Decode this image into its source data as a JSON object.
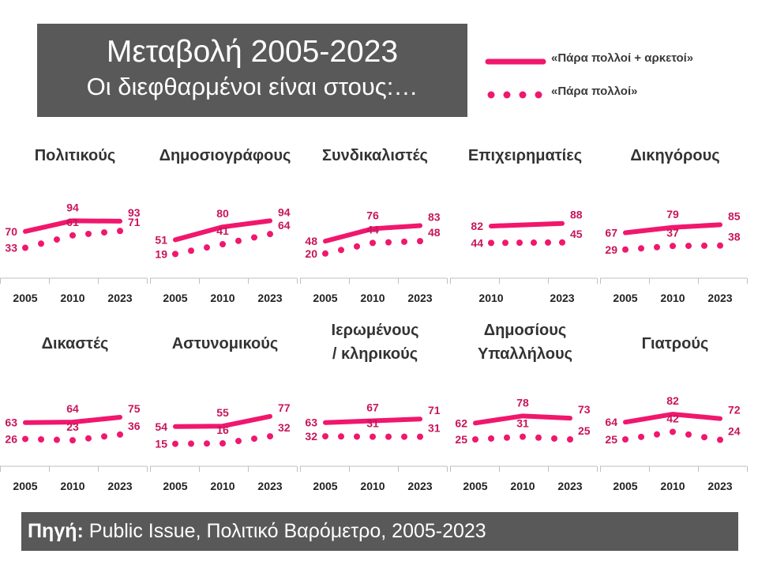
{
  "header": {
    "title_line1": "Μεταβολή 2005-2023",
    "title_line2": "Οι διεφθαρμένοι είναι στους:…"
  },
  "legend": {
    "solid_label": "«Πάρα πολλοί + αρκετοί»",
    "dotted_label": "«Πάρα πολλοί»"
  },
  "source": {
    "label": "Πηγή:",
    "text": " Public Issue, Πολιτικό Βαρόμετρο, 2005-2023"
  },
  "colors": {
    "accent": "#f0176d",
    "label": "#c8155a",
    "box": "#595959"
  },
  "chart_data": [
    {
      "type": "line",
      "title": "Πολιτικούς",
      "categories": [
        "2005",
        "2010",
        "2023"
      ],
      "series": [
        {
          "name": "«Πάρα πολλοί + αρκετοί»",
          "style": "solid",
          "values": [
            70,
            94,
            93
          ]
        },
        {
          "name": "«Πάρα πολλοί»",
          "style": "dotted",
          "values": [
            33,
            61,
            71
          ]
        }
      ]
    },
    {
      "type": "line",
      "title": "Δημοσιογράφους",
      "categories": [
        "2005",
        "2010",
        "2023"
      ],
      "series": [
        {
          "name": "«Πάρα πολλοί + αρκετοί»",
          "style": "solid",
          "values": [
            51,
            80,
            94
          ]
        },
        {
          "name": "«Πάρα πολλοί»",
          "style": "dotted",
          "values": [
            19,
            41,
            64
          ]
        }
      ]
    },
    {
      "type": "line",
      "title": "Συνδικαλιστές",
      "categories": [
        "2005",
        "2010",
        "2023"
      ],
      "series": [
        {
          "name": "«Πάρα πολλοί + αρκετοί»",
          "style": "solid",
          "values": [
            48,
            76,
            83
          ]
        },
        {
          "name": "«Πάρα πολλοί»",
          "style": "dotted",
          "values": [
            20,
            44,
            48
          ]
        }
      ]
    },
    {
      "type": "line",
      "title": "Επιχειρηματίες",
      "categories": [
        "2010",
        "2023"
      ],
      "series": [
        {
          "name": "«Πάρα πολλοί + αρκετοί»",
          "style": "solid",
          "values": [
            82,
            88
          ]
        },
        {
          "name": "«Πάρα πολλοί»",
          "style": "dotted",
          "values": [
            44,
            45
          ]
        }
      ]
    },
    {
      "type": "line",
      "title": "Δικηγόρους",
      "categories": [
        "2005",
        "2010",
        "2023"
      ],
      "series": [
        {
          "name": "«Πάρα πολλοί + αρκετοί»",
          "style": "solid",
          "values": [
            67,
            79,
            85
          ]
        },
        {
          "name": "«Πάρα πολλοί»",
          "style": "dotted",
          "values": [
            29,
            37,
            38
          ]
        }
      ]
    },
    {
      "type": "line",
      "title": "Δικαστές",
      "categories": [
        "2005",
        "2010",
        "2023"
      ],
      "series": [
        {
          "name": "«Πάρα πολλοί + αρκετοί»",
          "style": "solid",
          "values": [
            63,
            64,
            75
          ]
        },
        {
          "name": "«Πάρα πολλοί»",
          "style": "dotted",
          "values": [
            26,
            23,
            36
          ]
        }
      ]
    },
    {
      "type": "line",
      "title": "Αστυνομικούς",
      "categories": [
        "2005",
        "2010",
        "2023"
      ],
      "series": [
        {
          "name": "«Πάρα πολλοί + αρκετοί»",
          "style": "solid",
          "values": [
            54,
            55,
            77
          ]
        },
        {
          "name": "«Πάρα πολλοί»",
          "style": "dotted",
          "values": [
            15,
            16,
            32
          ]
        }
      ]
    },
    {
      "type": "line",
      "title": [
        "Ιερωμένους",
        "/ κληρικούς"
      ],
      "categories": [
        "2005",
        "2010",
        "2023"
      ],
      "series": [
        {
          "name": "«Πάρα πολλοί + αρκετοί»",
          "style": "solid",
          "values": [
            63,
            67,
            71
          ]
        },
        {
          "name": "«Πάρα πολλοί»",
          "style": "dotted",
          "values": [
            32,
            31,
            31
          ]
        }
      ]
    },
    {
      "type": "line",
      "title": [
        "Δημοσίους",
        "Υπαλλήλους"
      ],
      "categories": [
        "2005",
        "2010",
        "2023"
      ],
      "series": [
        {
          "name": "«Πάρα πολλοί + αρκετοί»",
          "style": "solid",
          "values": [
            62,
            78,
            73
          ]
        },
        {
          "name": "«Πάρα πολλοί»",
          "style": "dotted",
          "values": [
            25,
            31,
            25
          ]
        }
      ]
    },
    {
      "type": "line",
      "title": "Γιατρούς",
      "categories": [
        "2005",
        "2010",
        "2023"
      ],
      "series": [
        {
          "name": "«Πάρα πολλοί + αρκετοί»",
          "style": "solid",
          "values": [
            64,
            82,
            72
          ]
        },
        {
          "name": "«Πάρα πολλοί»",
          "style": "dotted",
          "values": [
            25,
            42,
            24
          ]
        }
      ]
    }
  ]
}
